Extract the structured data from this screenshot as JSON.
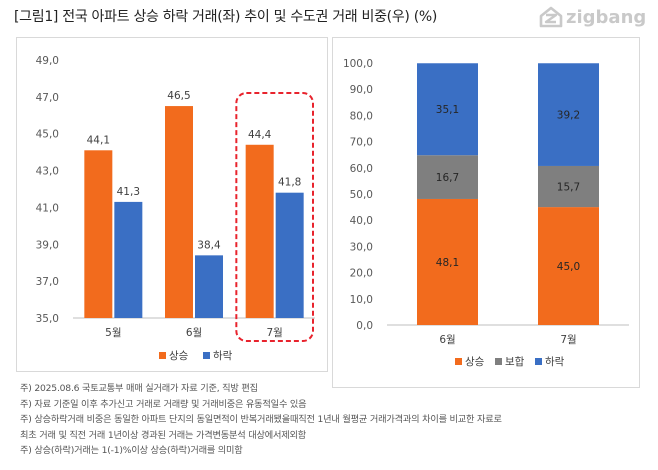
{
  "header": {
    "title": "[그림1] 전국 아파트 상승 하락 거래(좌) 추이 및 수도권 거래 비중(우) (%)",
    "logo_text": "zigbang"
  },
  "colors": {
    "up": "#f26b1d",
    "flat": "#7f7f7f",
    "down": "#3a6fc4",
    "highlight": "#e8232d"
  },
  "chart_data": [
    {
      "type": "bar",
      "categories": [
        "5월",
        "6월",
        "7월"
      ],
      "series": [
        {
          "name": "상승",
          "values": [
            44.1,
            46.5,
            44.4
          ],
          "labels": [
            "44,1",
            "46,5",
            "44,4"
          ]
        },
        {
          "name": "하락",
          "values": [
            41.3,
            38.4,
            41.8
          ],
          "labels": [
            "41,3",
            "38,4",
            "41,8"
          ]
        }
      ],
      "ylim": [
        35,
        49
      ],
      "yticks": [
        35,
        37,
        39,
        41,
        43,
        45,
        47,
        49
      ],
      "ytick_labels": [
        "35,0",
        "37,0",
        "39,0",
        "41,0",
        "43,0",
        "45,0",
        "47,0",
        "49,0"
      ],
      "highlight_category": "7월",
      "grid": false,
      "legend": "bottom"
    },
    {
      "type": "bar",
      "stacked": true,
      "categories": [
        "6월",
        "7월"
      ],
      "series": [
        {
          "name": "상승",
          "values": [
            48.1,
            45.0
          ],
          "labels": [
            "48,1",
            "45,0"
          ]
        },
        {
          "name": "보합",
          "values": [
            16.7,
            15.7
          ],
          "labels": [
            "16,7",
            "15,7"
          ]
        },
        {
          "name": "하락",
          "values": [
            35.1,
            39.2
          ],
          "labels": [
            "35,1",
            "39,2"
          ]
        }
      ],
      "ylim": [
        0,
        100
      ],
      "yticks": [
        0,
        10,
        20,
        30,
        40,
        50,
        60,
        70,
        80,
        90,
        100
      ],
      "ytick_labels": [
        "0,0",
        "10,0",
        "20,0",
        "30,0",
        "40,0",
        "50,0",
        "60,0",
        "70,0",
        "80,0",
        "90,0",
        "100,0"
      ],
      "grid": false,
      "legend": "bottom"
    }
  ],
  "notes": [
    "주) 2025.08.6   국토교통부 매매 실거래가 자료 기준, 직방 편집",
    "주) 자료 기준일 이후 추가신고 거래로 거래량 및 거래비중은 유동적일수 있음",
    "주) 상승하락거래 비중은 동일한 아파트 단지의 동일면적이 반복거래됐을때직전 1년내 월평균 거래가격과의 차이를 비교한 자료로",
    "최초 거래 및 직전 거래 1년이상 경과된 거래는 가격변동분석 대상에서제외함",
    "주) 상승(하락)거래는 1(-1)%이상 상승(하락)거래를 의미함"
  ]
}
